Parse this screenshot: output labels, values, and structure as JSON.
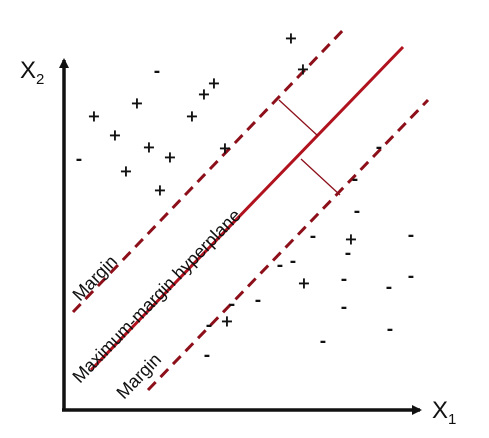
{
  "axes": {
    "y_label": "X",
    "y_sub": "2",
    "x_label": "X",
    "x_sub": "1"
  },
  "labels": {
    "hyperplane": "Maximum-margin hyperplane",
    "upper_margin": "Margin",
    "lower_margin": "Margin"
  },
  "colors": {
    "hyperplane": "#b0121e",
    "margins": "#8c0f1a",
    "axes": "#111111"
  },
  "points": {
    "plus_symbol": "+",
    "minus_symbol": "-",
    "plus_count": 16,
    "minus_count": 20
  }
}
